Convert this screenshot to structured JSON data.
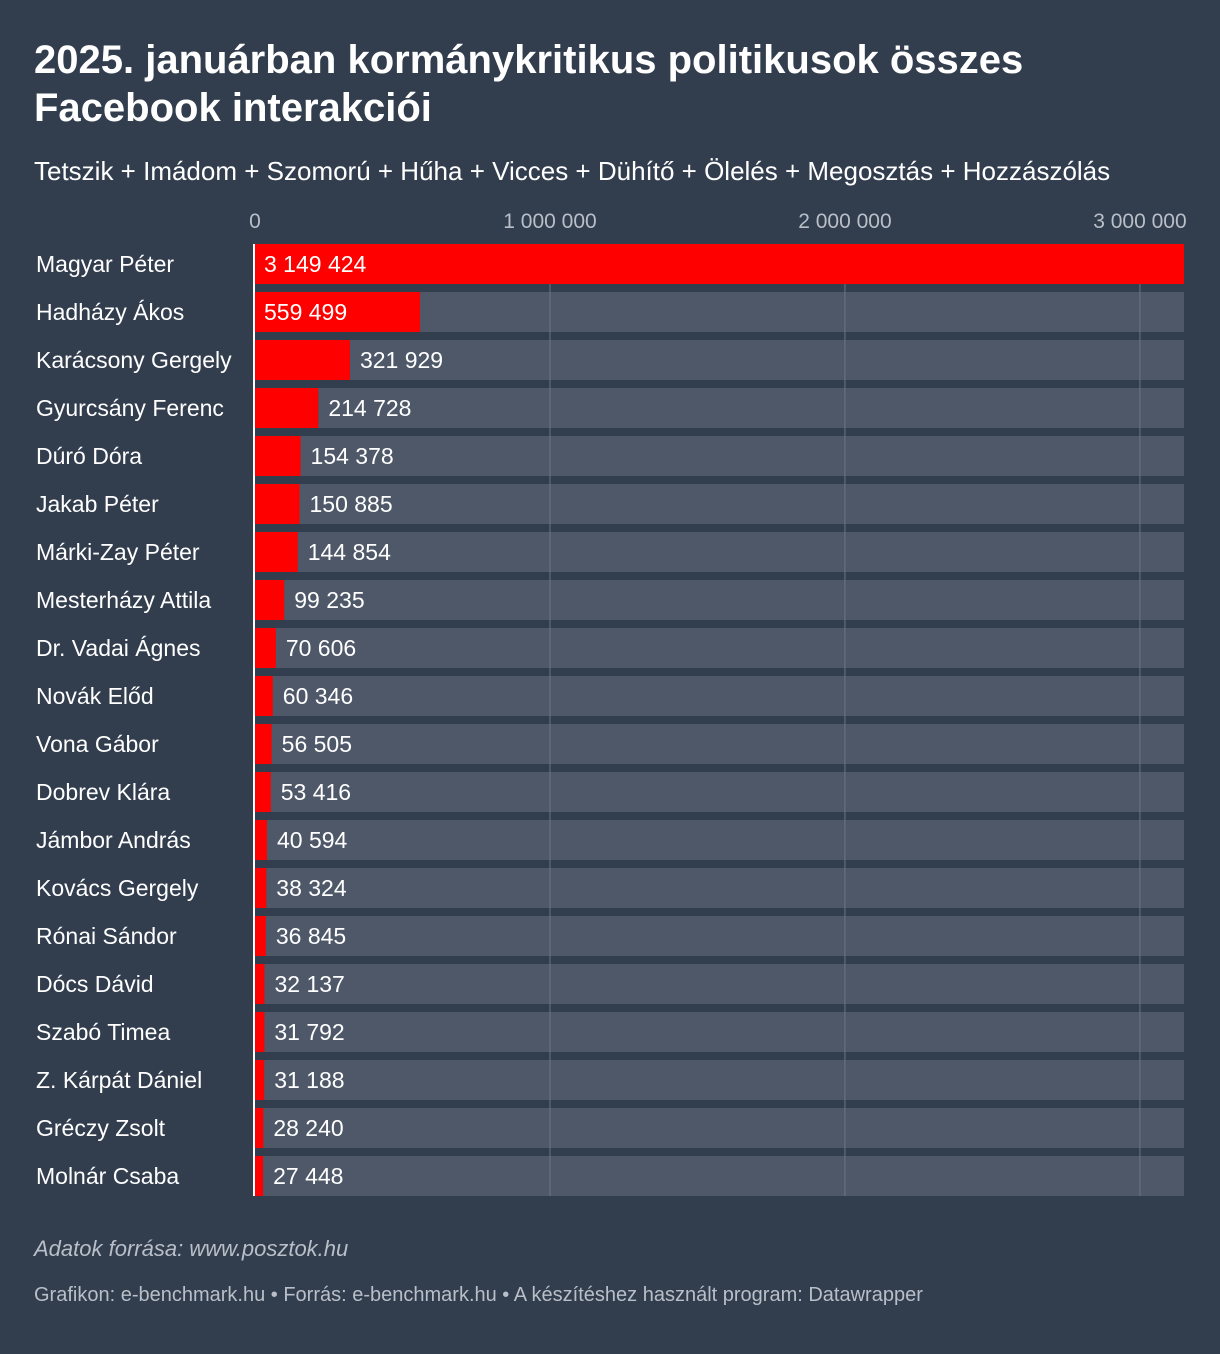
{
  "header": {
    "title": "2025. januárban kormánykritikus politikusok összes Facebook interakciói",
    "subtitle": "Tetszik + Imádom + Szomorú + Hűha + Vicces + Dühítő + Ölelés + Megosztás + Hozzászólás"
  },
  "footer": {
    "notes": "Adatok forrása: www.posztok.hu",
    "credits": "Grafikon: e-benchmark.hu • Forrás: e-benchmark.hu • A készítéshez használt program: Datawrapper"
  },
  "colors": {
    "background": "#323d4e",
    "bar": "#ff0000",
    "track": "#4e5868",
    "gridline": "#6b7585",
    "text": "#ffffff",
    "muted": "#b9bfc8"
  },
  "chart_data": {
    "type": "bar",
    "orientation": "horizontal",
    "xlim": [
      0,
      3149424
    ],
    "xticks": [
      0,
      1000000,
      2000000,
      3000000
    ],
    "xtick_labels": [
      "0",
      "1 000 000",
      "2 000 000",
      "3 000 000"
    ],
    "grid": true,
    "categories": [
      "Magyar Péter",
      "Hadházy Ákos",
      "Karácsony Gergely",
      "Gyurcsány Ferenc",
      "Dúró Dóra",
      "Jakab Péter",
      "Márki-Zay Péter",
      "Mesterházy Attila",
      "Dr. Vadai Ágnes",
      "Novák Előd",
      "Vona Gábor",
      "Dobrev Klára",
      "Jámbor András",
      "Kovács Gergely",
      "Rónai Sándor",
      "Dócs Dávid",
      "Szabó Timea",
      "Z. Kárpát Dániel",
      "Gréczy Zsolt",
      "Molnár Csaba"
    ],
    "values": [
      3149424,
      559499,
      321929,
      214728,
      154378,
      150885,
      144854,
      99235,
      70606,
      60346,
      56505,
      53416,
      40594,
      38324,
      36845,
      32137,
      31792,
      31188,
      28240,
      27448
    ],
    "value_labels": [
      "3 149 424",
      "559 499",
      "321 929",
      "214 728",
      "154 378",
      "150 885",
      "144 854",
      "99 235",
      "70 606",
      "60 346",
      "56 505",
      "53 416",
      "40 594",
      "38 324",
      "36 845",
      "32 137",
      "31 792",
      "31 188",
      "28 240",
      "27 448"
    ]
  }
}
